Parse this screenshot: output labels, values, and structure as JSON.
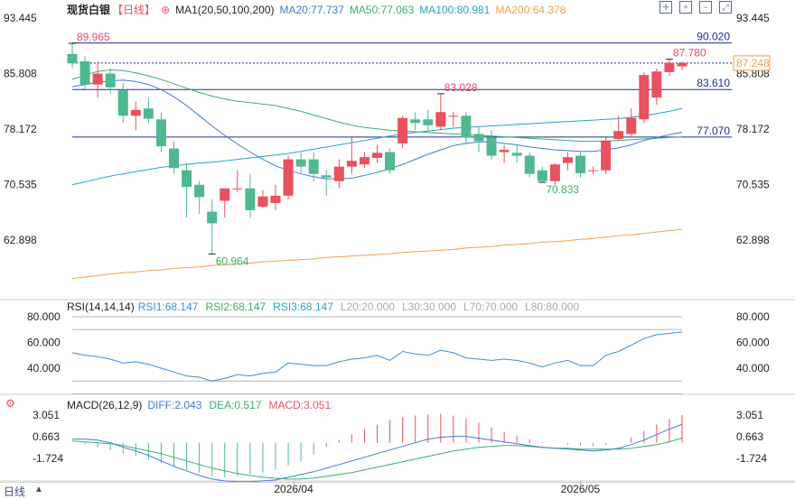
{
  "header": {
    "symbol": "现货白银",
    "timeframe": "【日线】",
    "ma_label": "MA1(20,50,100,200)",
    "ma20": "MA20:77.737",
    "ma50": "MA50:77.063",
    "ma100": "MA100:80.981",
    "ma200": "MA200:64.378"
  },
  "colors": {
    "up": "#e8525e",
    "down": "#4fb890",
    "ma20": "#3f7ad6",
    "ma50": "#3aaf6f",
    "ma100": "#2ba3c7",
    "ma200": "#f0a050",
    "hline": "#1f2d8e",
    "annot_high": "#e44a6e",
    "annot_low": "#3aaf6f",
    "rsi": "#3a8fd6",
    "diff": "#3f7ad6",
    "dea": "#3aaf6f"
  },
  "price_axis": {
    "ticks": [
      "93.445",
      "85.808",
      "78.172",
      "70.535",
      "62.898"
    ],
    "current_price": "87.248"
  },
  "levels": [
    {
      "label": "90.020",
      "value": 90.02
    },
    {
      "label": "83.610",
      "value": 83.61
    },
    {
      "label": "77.070",
      "value": 77.07
    }
  ],
  "annotations": {
    "high_left": "89.965",
    "high_right": "87.780",
    "mid_high": "83.028",
    "low": "60.964",
    "low2": "70.833"
  },
  "rsi": {
    "label": "RSI(14,14,14)",
    "rsi1": "RSI1:68.147",
    "rsi2": "RSI2:68.147",
    "rsi3": "RSI3:68.147",
    "l20": "L20:20.000",
    "l30": "L30:30.000",
    "l70": "L70:70.000",
    "l80": "L80:80.000",
    "ticks": [
      "80.000",
      "60.000",
      "40.000"
    ]
  },
  "macd": {
    "label": "MACD(26,12,9)",
    "diff": "DIFF:2.043",
    "dea": "DEA:0.517",
    "macd": "MACD:3.051",
    "ticks": [
      "3.051",
      "0.663",
      "-1.724"
    ]
  },
  "x_axis": {
    "labels": [
      "2026/04",
      "2026/05"
    ]
  },
  "footer": {
    "timeframe_button": "日线"
  },
  "chart_data": {
    "type": "candlestick",
    "title": "现货白银 日线",
    "ylim": [
      57.0,
      95.5
    ],
    "ohlc": [
      [
        88.5,
        89.97,
        86.5,
        87.2
      ],
      [
        87.5,
        88.2,
        83.5,
        84.3
      ],
      [
        84.3,
        87.5,
        82.5,
        85.8
      ],
      [
        85.8,
        86.5,
        83.0,
        83.9
      ],
      [
        83.5,
        84.5,
        79.0,
        80.0
      ],
      [
        80.0,
        82.0,
        78.0,
        80.8
      ],
      [
        81.0,
        82.5,
        79.0,
        79.6
      ],
      [
        79.5,
        80.5,
        75.0,
        75.8
      ],
      [
        75.5,
        76.5,
        72.0,
        72.8
      ],
      [
        72.5,
        73.5,
        66.0,
        70.2
      ],
      [
        70.5,
        71.0,
        66.5,
        68.8
      ],
      [
        66.8,
        68.5,
        60.96,
        65.2
      ],
      [
        68.3,
        70.0,
        66.0,
        70.0
      ],
      [
        70.0,
        72.5,
        69.5,
        70.0
      ],
      [
        70.0,
        72.0,
        66.0,
        67.0
      ],
      [
        67.5,
        69.8,
        67.3,
        68.9
      ],
      [
        68.0,
        70.5,
        67.0,
        69.0
      ],
      [
        69.0,
        74.5,
        68.5,
        74.0
      ],
      [
        74.0,
        75.0,
        72.0,
        73.0
      ],
      [
        74.0,
        75.0,
        71.0,
        72.0
      ],
      [
        71.8,
        72.5,
        69.0,
        71.5
      ],
      [
        71.0,
        74.0,
        70.0,
        73.0
      ],
      [
        73.0,
        77.0,
        72.0,
        73.8
      ],
      [
        73.3,
        75.0,
        72.8,
        74.3
      ],
      [
        74.2,
        76.0,
        73.5,
        74.9
      ],
      [
        75.0,
        75.5,
        72.0,
        72.5
      ],
      [
        76.2,
        80.0,
        75.5,
        79.7
      ],
      [
        79.5,
        80.5,
        78.0,
        79.0
      ],
      [
        79.5,
        80.8,
        78.0,
        78.7
      ],
      [
        78.5,
        83.03,
        78.0,
        80.5
      ],
      [
        80.0,
        80.5,
        78.5,
        80.0
      ],
      [
        80.0,
        80.5,
        76.0,
        77.0
      ],
      [
        77.5,
        78.5,
        75.0,
        76.5
      ],
      [
        77.0,
        78.0,
        74.0,
        74.5
      ],
      [
        75.0,
        76.0,
        73.5,
        75.3
      ],
      [
        74.9,
        76.0,
        73.5,
        74.5
      ],
      [
        74.5,
        75.0,
        71.5,
        72.0
      ],
      [
        72.5,
        73.0,
        70.83,
        71.0
      ],
      [
        71.0,
        73.5,
        70.5,
        73.3
      ],
      [
        73.5,
        75.0,
        72.5,
        74.3
      ],
      [
        74.5,
        75.0,
        71.5,
        72.1
      ],
      [
        72.5,
        73.0,
        72.0,
        72.5
      ],
      [
        72.5,
        77.0,
        72.0,
        76.6
      ],
      [
        76.8,
        80.0,
        76.5,
        77.9
      ],
      [
        77.5,
        81.0,
        77.0,
        79.7
      ],
      [
        79.5,
        86.0,
        79.0,
        85.6
      ],
      [
        82.5,
        86.5,
        81.5,
        86.1
      ],
      [
        86.0,
        87.78,
        85.5,
        87.3
      ],
      [
        86.8,
        87.5,
        86.2,
        87.25
      ]
    ],
    "ma20": [
      84.0,
      84.3,
      84.6,
      84.8,
      84.9,
      84.7,
      84.3,
      83.6,
      82.6,
      81.4,
      80.0,
      78.6,
      77.3,
      76.1,
      75.0,
      74.0,
      73.1,
      72.5,
      72.0,
      71.6,
      71.3,
      71.3,
      71.4,
      71.8,
      72.2,
      72.7,
      73.3,
      74.0,
      74.7,
      75.3,
      75.9,
      76.2,
      76.4,
      76.4,
      76.2,
      76.0,
      75.7,
      75.5,
      75.3,
      75.2,
      75.1,
      75.1,
      75.3,
      75.6,
      76.0,
      76.6,
      77.0,
      77.4,
      77.74
    ],
    "ma50": [
      85.0,
      85.6,
      86.1,
      86.3,
      86.2,
      85.9,
      85.5,
      85.0,
      84.4,
      83.8,
      83.2,
      82.7,
      82.3,
      82.0,
      81.8,
      81.6,
      81.4,
      81.0,
      80.6,
      80.1,
      79.6,
      79.1,
      78.7,
      78.4,
      78.2,
      78.0,
      77.9,
      77.8,
      77.7,
      77.6,
      77.5,
      77.4,
      77.3,
      77.2,
      77.1,
      77.0,
      76.9,
      76.8,
      76.7,
      76.6,
      76.5,
      76.5,
      76.5,
      76.6,
      76.7,
      76.8,
      76.9,
      77.0,
      77.06
    ],
    "ma100": [
      70.5,
      70.9,
      71.3,
      71.7,
      72.0,
      72.3,
      72.6,
      72.9,
      73.1,
      73.3,
      73.5,
      73.6,
      73.8,
      74.0,
      74.2,
      74.4,
      74.6,
      74.8,
      75.1,
      75.4,
      75.7,
      76.0,
      76.3,
      76.6,
      76.9,
      77.2,
      77.5,
      77.7,
      77.9,
      78.1,
      78.3,
      78.4,
      78.5,
      78.6,
      78.7,
      78.8,
      78.9,
      79.0,
      79.1,
      79.2,
      79.3,
      79.4,
      79.5,
      79.6,
      79.8,
      80.0,
      80.3,
      80.6,
      80.98
    ],
    "ma200": [
      57.6,
      57.8,
      58.0,
      58.2,
      58.4,
      58.5,
      58.7,
      58.8,
      59.0,
      59.1,
      59.2,
      59.4,
      59.5,
      59.6,
      59.7,
      59.9,
      60.0,
      60.1,
      60.2,
      60.3,
      60.5,
      60.6,
      60.7,
      60.8,
      60.9,
      61.0,
      61.2,
      61.3,
      61.4,
      61.5,
      61.6,
      61.8,
      61.9,
      62.0,
      62.2,
      62.3,
      62.4,
      62.6,
      62.7,
      62.8,
      63.0,
      63.1,
      63.3,
      63.5,
      63.6,
      63.8,
      64.0,
      64.2,
      64.38
    ],
    "rsi": [
      52,
      50,
      49,
      47,
      44,
      45,
      43,
      40,
      37,
      34,
      33,
      30,
      32,
      35,
      34,
      36,
      37,
      44,
      43,
      42,
      42,
      45,
      47,
      48,
      50,
      46,
      53,
      51,
      50,
      54,
      52,
      48,
      47,
      46,
      47,
      46,
      44,
      41,
      44,
      46,
      42,
      42,
      50,
      53,
      58,
      63,
      66,
      67,
      68.15
    ],
    "rsi_ylim": [
      20,
      85
    ],
    "macd_hist": [
      0.0,
      -0.2,
      -0.5,
      -0.8,
      -1.2,
      -1.5,
      -1.9,
      -2.2,
      -2.6,
      -3.0,
      -3.3,
      -3.7,
      -3.8,
      -3.7,
      -3.5,
      -3.3,
      -3.0,
      -2.5,
      -2.0,
      -1.3,
      -0.5,
      0.3,
      0.9,
      1.5,
      2.0,
      2.5,
      2.8,
      3.0,
      3.1,
      3.2,
      3.0,
      2.7,
      2.2,
      1.7,
      1.2,
      0.8,
      0.4,
      0.1,
      0.0,
      -0.2,
      -0.3,
      -0.4,
      -0.3,
      0.0,
      0.6,
      1.3,
      2.0,
      2.6,
      3.05
    ],
    "diff": [
      0.4,
      0.4,
      0.3,
      0.0,
      -0.5,
      -0.9,
      -1.4,
      -2.0,
      -2.6,
      -3.1,
      -3.6,
      -4.0,
      -4.2,
      -4.3,
      -4.3,
      -4.2,
      -4.1,
      -3.8,
      -3.5,
      -3.2,
      -2.8,
      -2.4,
      -2.0,
      -1.6,
      -1.2,
      -0.8,
      -0.4,
      0.0,
      0.4,
      0.6,
      0.7,
      0.7,
      0.5,
      0.3,
      0.1,
      -0.1,
      -0.3,
      -0.5,
      -0.6,
      -0.7,
      -0.8,
      -0.9,
      -0.8,
      -0.6,
      -0.2,
      0.3,
      0.9,
      1.5,
      2.04
    ],
    "dea": [
      0.2,
      0.1,
      0.0,
      -0.1,
      -0.3,
      -0.6,
      -0.9,
      -1.2,
      -1.6,
      -2.0,
      -2.4,
      -2.8,
      -3.1,
      -3.4,
      -3.6,
      -3.8,
      -3.9,
      -4.0,
      -4.0,
      -3.9,
      -3.7,
      -3.5,
      -3.3,
      -3.0,
      -2.7,
      -2.4,
      -2.1,
      -1.8,
      -1.5,
      -1.2,
      -0.9,
      -0.7,
      -0.5,
      -0.4,
      -0.3,
      -0.3,
      -0.4,
      -0.5,
      -0.6,
      -0.6,
      -0.7,
      -0.7,
      -0.7,
      -0.7,
      -0.6,
      -0.4,
      -0.2,
      0.1,
      0.52
    ],
    "macd_ylim": [
      -5.5,
      3.6
    ]
  }
}
